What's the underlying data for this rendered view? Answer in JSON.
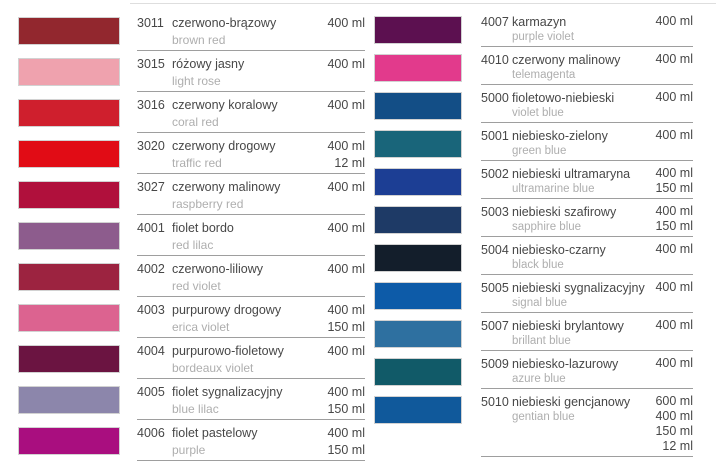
{
  "styles": {
    "background": "#ffffff",
    "separator_color": "#9e9e9e",
    "top_hairline_color": "#dedede",
    "text_color": "#474747",
    "text_muted_color": "#aeaeae",
    "swatch_border_color": "#d2d2d2"
  },
  "columns": [
    {
      "id": "left",
      "rows": [
        {
          "code": "3011",
          "name_pl": "czerwono-brązowy",
          "name_en": "brown red",
          "swatch_color": "#92272e",
          "volumes": [
            "400 ml"
          ]
        },
        {
          "code": "3015",
          "name_pl": "różowy jasny",
          "name_en": "light rose",
          "swatch_color": "#efa2ae",
          "volumes": [
            "400 ml"
          ]
        },
        {
          "code": "3016",
          "name_pl": "czerwony koralowy",
          "name_en": "coral red",
          "swatch_color": "#cf1f2d",
          "volumes": [
            "400 ml"
          ]
        },
        {
          "code": "3020",
          "name_pl": "czerwony drogowy",
          "name_en": "traffic red",
          "swatch_color": "#e10c15",
          "volumes": [
            "400 ml",
            "12 ml"
          ]
        },
        {
          "code": "3027",
          "name_pl": "czerwony malinowy",
          "name_en": "raspberry red",
          "swatch_color": "#b0103c",
          "volumes": [
            "400 ml"
          ]
        },
        {
          "code": "4001",
          "name_pl": "fiolet bordo",
          "name_en": "red lilac",
          "swatch_color": "#8d5c8d",
          "volumes": [
            "400 ml"
          ]
        },
        {
          "code": "4002",
          "name_pl": "czerwono-liliowy",
          "name_en": "red violet",
          "swatch_color": "#9c2340",
          "volumes": [
            "400 ml"
          ]
        },
        {
          "code": "4003",
          "name_pl": "purpurowy drogowy",
          "name_en": "erica violet",
          "swatch_color": "#dc6390",
          "volumes": [
            "400 ml",
            "150 ml"
          ]
        },
        {
          "code": "4004",
          "name_pl": "purpurowo-fioletowy",
          "name_en": "bordeaux violet",
          "swatch_color": "#6b1441",
          "volumes": [
            "400 ml"
          ]
        },
        {
          "code": "4005",
          "name_pl": "fiolet sygnalizacyjny",
          "name_en": "blue lilac",
          "swatch_color": "#8c86ab",
          "volumes": [
            "400 ml",
            "150 ml"
          ]
        },
        {
          "code": "4006",
          "name_pl": "fiolet pastelowy",
          "name_en": "purple",
          "swatch_color": "#a90e7f",
          "volumes": [
            "400 ml",
            "150 ml"
          ]
        }
      ]
    },
    {
      "id": "right",
      "rows": [
        {
          "code": "4007",
          "name_pl": "karmazyn",
          "name_en": "purple violet",
          "swatch_color": "#5c1050",
          "volumes": [
            "400 ml"
          ]
        },
        {
          "code": "4010",
          "name_pl": "czerwony malinowy",
          "name_en": "telemagenta",
          "swatch_color": "#e23a8c",
          "volumes": [
            "400 ml"
          ]
        },
        {
          "code": "5000",
          "name_pl": "fioletowo-niebieski",
          "name_en": "violet blue",
          "swatch_color": "#134e86",
          "volumes": [
            "400 ml"
          ]
        },
        {
          "code": "5001",
          "name_pl": "niebiesko-zielony",
          "name_en": "green blue",
          "swatch_color": "#19657a",
          "volumes": [
            "400 ml"
          ]
        },
        {
          "code": "5002",
          "name_pl": "niebieski ultramaryna",
          "name_en": "ultramarine blue",
          "swatch_color": "#1c3e94",
          "volumes": [
            "400 ml",
            "150 ml"
          ]
        },
        {
          "code": "5003",
          "name_pl": "niebieski szafirowy",
          "name_en": "sapphire blue",
          "swatch_color": "#1e3a66",
          "volumes": [
            "400 ml",
            "150 ml"
          ]
        },
        {
          "code": "5004",
          "name_pl": "niebiesko-czarny",
          "name_en": "black blue",
          "swatch_color": "#131e2b",
          "volumes": [
            "400 ml"
          ]
        },
        {
          "code": "5005",
          "name_pl": "niebieski sygnalizacyjny",
          "name_en": "signal blue",
          "swatch_color": "#0d5ba8",
          "volumes": [
            "400 ml"
          ]
        },
        {
          "code": "5007",
          "name_pl": "niebieski brylantowy",
          "name_en": "brillant blue",
          "swatch_color": "#2e70a0",
          "volumes": [
            "400 ml"
          ]
        },
        {
          "code": "5009",
          "name_pl": "niebiesko-lazurowy",
          "name_en": "azure blue",
          "swatch_color": "#115a68",
          "volumes": [
            "400 ml"
          ]
        },
        {
          "code": "5010",
          "name_pl": "niebieski gencjanowy",
          "name_en": "gentian blue",
          "swatch_color": "#10599b",
          "volumes": [
            "600 ml",
            "400 ml",
            "150 ml",
            "12 ml"
          ]
        }
      ]
    }
  ]
}
